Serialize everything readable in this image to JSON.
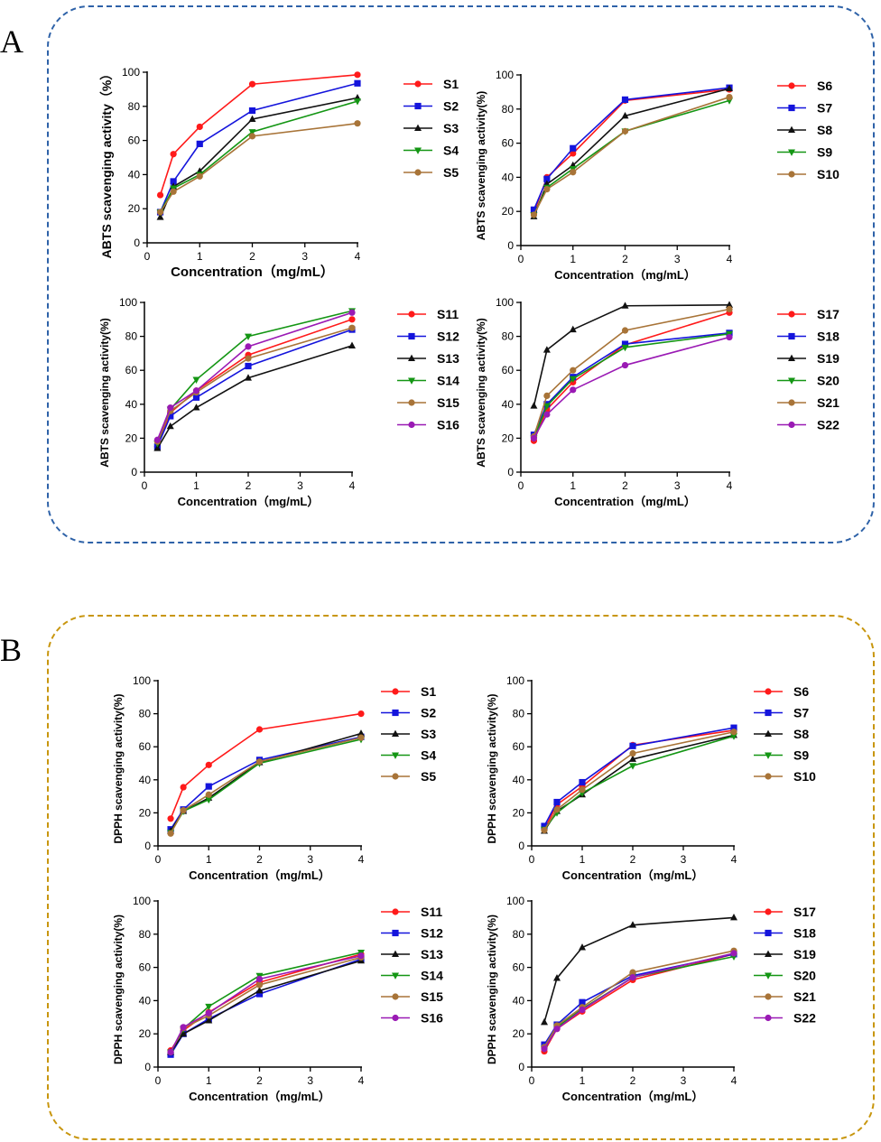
{
  "panels": [
    {
      "letter": "A",
      "border_color": "#2E62A8"
    },
    {
      "letter": "B",
      "border_color": "#C8960E"
    }
  ],
  "x_axis_label": "Concentration（mg/mL）",
  "abts_label": "ABTS scavenging activity(%)",
  "abts_label_first": "ABTS scavenging activity（%）",
  "dpph_label": "DPPH scavenging activity(%)",
  "colors": {
    "red": "#FF1A1A",
    "blue": "#1414DC",
    "black": "#111111",
    "green": "#149614",
    "brown": "#A87438",
    "purple": "#9A1AB4"
  },
  "chart_data": [
    {
      "id": "A1",
      "type": "line",
      "ylabel": "ABTS scavenging activity（%）",
      "xlabel": "Concentration（mg/mL）",
      "x": [
        0.25,
        0.5,
        1,
        2,
        4
      ],
      "xlim": [
        0,
        4
      ],
      "ylim": [
        0,
        100
      ],
      "xticks": [
        0,
        1,
        2,
        3,
        4
      ],
      "yticks": [
        0,
        20,
        40,
        60,
        80,
        100
      ],
      "series": [
        {
          "name": "S1",
          "color": "red",
          "marker": "circle",
          "values": [
            28,
            52,
            68,
            93,
            98.5
          ]
        },
        {
          "name": "S2",
          "color": "blue",
          "marker": "square",
          "values": [
            18,
            36,
            58,
            77.5,
            93.5
          ]
        },
        {
          "name": "S3",
          "color": "black",
          "marker": "triangle-up",
          "values": [
            15,
            33,
            42,
            72.5,
            85
          ]
        },
        {
          "name": "S4",
          "color": "green",
          "marker": "triangle-down",
          "values": [
            18,
            32,
            40,
            65,
            83
          ]
        },
        {
          "name": "S5",
          "color": "brown",
          "marker": "circle",
          "values": [
            18,
            30,
            39,
            62.5,
            70
          ]
        }
      ]
    },
    {
      "id": "A2",
      "type": "line",
      "ylabel": "ABTS scavenging activity(%)",
      "xlabel": "Concentration（mg/mL）",
      "x": [
        0.25,
        0.5,
        1,
        2,
        4
      ],
      "xlim": [
        0,
        4
      ],
      "ylim": [
        0,
        100
      ],
      "xticks": [
        0,
        1,
        2,
        3,
        4
      ],
      "yticks": [
        0,
        20,
        40,
        60,
        80,
        100
      ],
      "series": [
        {
          "name": "S6",
          "color": "red",
          "marker": "circle",
          "values": [
            19,
            40,
            54,
            85,
            91.5
          ]
        },
        {
          "name": "S7",
          "color": "blue",
          "marker": "square",
          "values": [
            21,
            39,
            57,
            85.5,
            92.5
          ]
        },
        {
          "name": "S8",
          "color": "black",
          "marker": "triangle-up",
          "values": [
            17,
            36,
            47,
            76,
            92
          ]
        },
        {
          "name": "S9",
          "color": "green",
          "marker": "triangle-down",
          "values": [
            18,
            34,
            45,
            67,
            85
          ]
        },
        {
          "name": "S10",
          "color": "brown",
          "marker": "circle",
          "values": [
            18,
            33,
            43,
            67,
            87
          ]
        }
      ]
    },
    {
      "id": "A3",
      "type": "line",
      "ylabel": "ABTS scavenging activity(%)",
      "xlabel": "Concentration（mg/mL）",
      "x": [
        0.25,
        0.5,
        1,
        2,
        4
      ],
      "xlim": [
        0,
        4
      ],
      "ylim": [
        0,
        100
      ],
      "xticks": [
        0,
        1,
        2,
        3,
        4
      ],
      "yticks": [
        0,
        20,
        40,
        60,
        80,
        100
      ],
      "series": [
        {
          "name": "S11",
          "color": "red",
          "marker": "circle",
          "values": [
            15,
            35,
            48,
            69,
            90
          ]
        },
        {
          "name": "S12",
          "color": "blue",
          "marker": "square",
          "values": [
            15,
            33,
            44,
            62.5,
            84
          ]
        },
        {
          "name": "S13",
          "color": "black",
          "marker": "triangle-up",
          "values": [
            14,
            27,
            38,
            55.5,
            74.5
          ]
        },
        {
          "name": "S14",
          "color": "green",
          "marker": "triangle-down",
          "values": [
            17,
            37,
            54.5,
            80,
            95
          ]
        },
        {
          "name": "S15",
          "color": "brown",
          "marker": "circle",
          "values": [
            18,
            36,
            47,
            67,
            85
          ]
        },
        {
          "name": "S16",
          "color": "purple",
          "marker": "circle",
          "values": [
            19,
            38,
            48,
            74,
            94
          ]
        }
      ]
    },
    {
      "id": "A4",
      "type": "line",
      "ylabel": "ABTS scavenging activity(%)",
      "xlabel": "Concentration（mg/mL）",
      "x": [
        0.25,
        0.5,
        1,
        2,
        4
      ],
      "xlim": [
        0,
        4
      ],
      "ylim": [
        0,
        100
      ],
      "xticks": [
        0,
        1,
        2,
        3,
        4
      ],
      "yticks": [
        0,
        20,
        40,
        60,
        80,
        100
      ],
      "series": [
        {
          "name": "S17",
          "color": "red",
          "marker": "circle",
          "values": [
            18.5,
            37,
            53,
            75,
            94
          ]
        },
        {
          "name": "S18",
          "color": "blue",
          "marker": "square",
          "values": [
            22,
            40,
            56,
            75.5,
            82
          ]
        },
        {
          "name": "S19",
          "color": "black",
          "marker": "triangle-up",
          "values": [
            39,
            72,
            84,
            98,
            98.5
          ]
        },
        {
          "name": "S20",
          "color": "green",
          "marker": "triangle-down",
          "values": [
            20,
            39,
            55,
            73.5,
            81.5
          ]
        },
        {
          "name": "S21",
          "color": "brown",
          "marker": "circle",
          "values": [
            21,
            45,
            60,
            83.5,
            96
          ]
        },
        {
          "name": "S22",
          "color": "purple",
          "marker": "circle",
          "values": [
            20,
            34,
            48.5,
            63,
            79.5
          ]
        }
      ]
    },
    {
      "id": "B1",
      "type": "line",
      "ylabel": "DPPH scavenging activity(%)",
      "xlabel": "Concentration（mg/mL）",
      "x": [
        0.25,
        0.5,
        1,
        2,
        4
      ],
      "xlim": [
        0,
        4
      ],
      "ylim": [
        0,
        100
      ],
      "xticks": [
        0,
        1,
        2,
        3,
        4
      ],
      "yticks": [
        0,
        20,
        40,
        60,
        80,
        100
      ],
      "series": [
        {
          "name": "S1",
          "color": "red",
          "marker": "circle",
          "values": [
            16.5,
            35.5,
            49,
            70.5,
            80
          ]
        },
        {
          "name": "S2",
          "color": "blue",
          "marker": "square",
          "values": [
            10,
            22,
            36,
            52,
            66
          ]
        },
        {
          "name": "S3",
          "color": "black",
          "marker": "triangle-up",
          "values": [
            9,
            21,
            29,
            50.5,
            68
          ]
        },
        {
          "name": "S4",
          "color": "green",
          "marker": "triangle-down",
          "values": [
            8,
            21,
            28,
            50,
            64.5
          ]
        },
        {
          "name": "S5",
          "color": "brown",
          "marker": "circle",
          "values": [
            7.5,
            21.5,
            31,
            51,
            65.5
          ]
        }
      ]
    },
    {
      "id": "B2",
      "type": "line",
      "ylabel": "DPPH scavenging activity(%)",
      "xlabel": "Concentration（mg/mL）",
      "x": [
        0.25,
        0.5,
        1,
        2,
        4
      ],
      "xlim": [
        0,
        4
      ],
      "ylim": [
        0,
        100
      ],
      "xticks": [
        0,
        1,
        2,
        3,
        4
      ],
      "yticks": [
        0,
        20,
        40,
        60,
        80,
        100
      ],
      "series": [
        {
          "name": "S6",
          "color": "red",
          "marker": "circle",
          "values": [
            10,
            25,
            36,
            61,
            70
          ]
        },
        {
          "name": "S7",
          "color": "blue",
          "marker": "square",
          "values": [
            12,
            26.5,
            38.5,
            60.5,
            71.5
          ]
        },
        {
          "name": "S8",
          "color": "black",
          "marker": "triangle-up",
          "values": [
            9,
            21,
            31,
            52.5,
            67
          ]
        },
        {
          "name": "S9",
          "color": "green",
          "marker": "triangle-down",
          "values": [
            10,
            20,
            32,
            48.5,
            66.5
          ]
        },
        {
          "name": "S10",
          "color": "brown",
          "marker": "circle",
          "values": [
            9.5,
            22,
            34,
            56,
            69
          ]
        }
      ]
    },
    {
      "id": "B3",
      "type": "line",
      "ylabel": "DPPH scavenging activity(%)",
      "xlabel": "Concentration（mg/mL）",
      "x": [
        0.25,
        0.5,
        1,
        2,
        4
      ],
      "xlim": [
        0,
        4
      ],
      "ylim": [
        0,
        100
      ],
      "xticks": [
        0,
        1,
        2,
        3,
        4
      ],
      "yticks": [
        0,
        20,
        40,
        60,
        80,
        100
      ],
      "series": [
        {
          "name": "S11",
          "color": "red",
          "marker": "circle",
          "values": [
            10,
            22,
            33,
            51,
            68
          ]
        },
        {
          "name": "S12",
          "color": "blue",
          "marker": "square",
          "values": [
            7.5,
            20,
            29,
            44,
            65
          ]
        },
        {
          "name": "S13",
          "color": "black",
          "marker": "triangle-up",
          "values": [
            9,
            20,
            28,
            46,
            64
          ]
        },
        {
          "name": "S14",
          "color": "green",
          "marker": "triangle-down",
          "values": [
            9,
            23,
            36.5,
            55,
            69
          ]
        },
        {
          "name": "S15",
          "color": "brown",
          "marker": "circle",
          "values": [
            9,
            23.5,
            31,
            49.5,
            66
          ]
        },
        {
          "name": "S16",
          "color": "purple",
          "marker": "circle",
          "values": [
            9,
            24,
            32.5,
            53,
            67
          ]
        }
      ]
    },
    {
      "id": "B4",
      "type": "line",
      "ylabel": "DPPH scavenging activity(%)",
      "xlabel": "Concentration（mg/mL）",
      "x": [
        0.25,
        0.5,
        1,
        2,
        4
      ],
      "xlim": [
        0,
        4
      ],
      "ylim": [
        0,
        100
      ],
      "xticks": [
        0,
        1,
        2,
        3,
        4
      ],
      "yticks": [
        0,
        20,
        40,
        60,
        80,
        100
      ],
      "series": [
        {
          "name": "S17",
          "color": "red",
          "marker": "circle",
          "values": [
            9.5,
            23,
            33.5,
            52.5,
            68
          ]
        },
        {
          "name": "S18",
          "color": "blue",
          "marker": "square",
          "values": [
            13.5,
            25.5,
            39,
            55,
            68
          ]
        },
        {
          "name": "S19",
          "color": "black",
          "marker": "triangle-up",
          "values": [
            27,
            53.5,
            72,
            85.5,
            90
          ]
        },
        {
          "name": "S20",
          "color": "green",
          "marker": "triangle-down",
          "values": [
            11,
            24,
            35,
            54,
            66.5
          ]
        },
        {
          "name": "S21",
          "color": "brown",
          "marker": "circle",
          "values": [
            12,
            25,
            36,
            57,
            70
          ]
        },
        {
          "name": "S22",
          "color": "purple",
          "marker": "circle",
          "values": [
            11,
            23,
            34.5,
            54,
            68.5
          ]
        }
      ]
    }
  ]
}
